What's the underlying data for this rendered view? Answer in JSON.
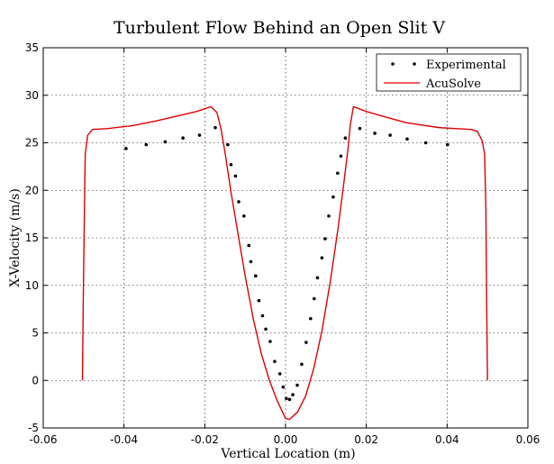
{
  "chart_data": {
    "type": "scatter",
    "title": "Turbulent Flow Behind an Open Slit V",
    "xlabel": "Vertical Location (m)",
    "ylabel": "X-Velocity (m/s)",
    "xlim": [
      -0.06,
      0.06
    ],
    "ylim": [
      -5,
      35
    ],
    "xticks": [
      -0.06,
      -0.04,
      -0.02,
      0.0,
      0.02,
      0.04,
      0.06
    ],
    "xtick_labels": [
      "-0.06",
      "-0.04",
      "-0.02",
      "0.00",
      "0.02",
      "0.04",
      "0.06"
    ],
    "yticks": [
      -5,
      0,
      5,
      10,
      15,
      20,
      25,
      30,
      35
    ],
    "ytick_labels": [
      "-5",
      "0",
      "5",
      "10",
      "15",
      "20",
      "25",
      "30",
      "35"
    ],
    "grid": true,
    "legend_position": "top-right",
    "series": [
      {
        "name": "Experimental",
        "kind": "scatter",
        "color": "#000000",
        "points": [
          [
            -0.0395,
            24.4
          ],
          [
            -0.0345,
            24.8
          ],
          [
            -0.0298,
            25.1
          ],
          [
            -0.0254,
            25.5
          ],
          [
            -0.0213,
            25.8
          ],
          [
            -0.0174,
            26.6
          ],
          [
            -0.0143,
            24.8
          ],
          [
            -0.0135,
            22.7
          ],
          [
            -0.0124,
            21.5
          ],
          [
            -0.0116,
            18.8
          ],
          [
            -0.0103,
            17.3
          ],
          [
            -0.0091,
            14.2
          ],
          [
            -0.0086,
            12.5
          ],
          [
            -0.0074,
            11.0
          ],
          [
            -0.0066,
            8.4
          ],
          [
            -0.0057,
            6.8
          ],
          [
            -0.0049,
            5.4
          ],
          [
            -0.0038,
            4.1
          ],
          [
            -0.0027,
            2.0
          ],
          [
            -0.0014,
            0.7
          ],
          [
            -0.0006,
            -0.7
          ],
          [
            0.0002,
            -1.9
          ],
          [
            0.001,
            -2.0
          ],
          [
            0.0018,
            -1.5
          ],
          [
            0.0029,
            -0.5
          ],
          [
            0.004,
            1.7
          ],
          [
            0.0051,
            4.0
          ],
          [
            0.0062,
            6.5
          ],
          [
            0.0071,
            8.6
          ],
          [
            0.0079,
            10.8
          ],
          [
            0.009,
            12.9
          ],
          [
            0.0098,
            14.9
          ],
          [
            0.0107,
            17.3
          ],
          [
            0.0118,
            19.3
          ],
          [
            0.0129,
            21.8
          ],
          [
            0.0137,
            23.6
          ],
          [
            0.0148,
            25.5
          ],
          [
            0.0184,
            26.5
          ],
          [
            0.0221,
            26.0
          ],
          [
            0.0259,
            25.8
          ],
          [
            0.0301,
            25.4
          ],
          [
            0.0347,
            25.0
          ],
          [
            0.0401,
            24.8
          ]
        ]
      },
      {
        "name": "AcuSolve",
        "kind": "line",
        "color": "#dd0000",
        "points": [
          [
            -0.0503,
            0.0
          ],
          [
            -0.0501,
            8.0
          ],
          [
            -0.0498,
            18.0
          ],
          [
            -0.0496,
            23.8
          ],
          [
            -0.049,
            25.8
          ],
          [
            -0.0478,
            26.4
          ],
          [
            -0.044,
            26.5
          ],
          [
            -0.038,
            26.8
          ],
          [
            -0.032,
            27.3
          ],
          [
            -0.026,
            27.9
          ],
          [
            -0.022,
            28.3
          ],
          [
            -0.0185,
            28.8
          ],
          [
            -0.017,
            28.2
          ],
          [
            -0.016,
            26.5
          ],
          [
            -0.015,
            24.0
          ],
          [
            -0.0135,
            19.8
          ],
          [
            -0.012,
            16.0
          ],
          [
            -0.01,
            11.0
          ],
          [
            -0.008,
            6.5
          ],
          [
            -0.006,
            2.8
          ],
          [
            -0.004,
            0.0
          ],
          [
            -0.002,
            -2.2
          ],
          [
            -0.001,
            -3.1
          ],
          [
            0.0,
            -4.0
          ],
          [
            0.001,
            -4.1
          ],
          [
            0.003,
            -3.3
          ],
          [
            0.005,
            -1.6
          ],
          [
            0.007,
            1.3
          ],
          [
            0.009,
            5.2
          ],
          [
            0.011,
            10.2
          ],
          [
            0.013,
            16.0
          ],
          [
            0.0145,
            21.0
          ],
          [
            0.0155,
            24.5
          ],
          [
            0.016,
            26.8
          ],
          [
            0.0168,
            28.8
          ],
          [
            0.02,
            28.3
          ],
          [
            0.024,
            27.8
          ],
          [
            0.03,
            27.1
          ],
          [
            0.038,
            26.6
          ],
          [
            0.046,
            26.4
          ],
          [
            0.0475,
            26.2
          ],
          [
            0.0487,
            25.2
          ],
          [
            0.0493,
            23.8
          ],
          [
            0.0496,
            18.0
          ],
          [
            0.0498,
            8.0
          ],
          [
            0.05,
            0.0
          ]
        ]
      }
    ]
  }
}
